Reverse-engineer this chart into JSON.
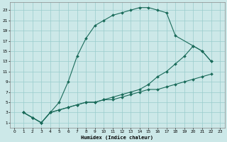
{
  "xlabel": "Humidex (Indice chaleur)",
  "bg_color": "#cce8e8",
  "grid_color": "#99cccc",
  "line_color": "#1a6b5a",
  "xlim": [
    -0.5,
    23.5
  ],
  "ylim": [
    0,
    24.5
  ],
  "xticks": [
    0,
    1,
    2,
    3,
    4,
    5,
    6,
    7,
    8,
    9,
    10,
    11,
    12,
    13,
    14,
    15,
    16,
    17,
    18,
    19,
    20,
    21,
    22,
    23
  ],
  "yticks": [
    1,
    3,
    5,
    7,
    9,
    11,
    13,
    15,
    17,
    19,
    21,
    23
  ],
  "curve1_x": [
    1,
    2,
    3,
    4,
    5,
    6,
    7,
    8,
    9,
    10,
    11,
    12,
    13,
    14,
    15,
    16,
    17,
    18,
    20,
    21,
    22
  ],
  "curve1_y": [
    3,
    2,
    1,
    3,
    5,
    9,
    14,
    17.5,
    20,
    21,
    22,
    22.5,
    23,
    23.5,
    23.5,
    23,
    22.5,
    18,
    16,
    15,
    13
  ],
  "curve2_x": [
    1,
    2,
    3,
    4,
    5,
    6,
    7,
    8,
    9,
    10,
    11,
    12,
    13,
    14,
    15,
    16,
    17,
    18,
    19,
    20,
    21,
    22
  ],
  "curve2_y": [
    3,
    2,
    1,
    3,
    3.5,
    4,
    4.5,
    5,
    5,
    5.5,
    6,
    6.5,
    7,
    7.5,
    8.5,
    10,
    11,
    12.5,
    14,
    16,
    15,
    13
  ],
  "curve3_x": [
    1,
    2,
    3,
    4,
    5,
    6,
    7,
    8,
    9,
    10,
    11,
    12,
    13,
    14,
    15,
    16,
    17,
    18,
    19,
    20,
    21,
    22
  ],
  "curve3_y": [
    3,
    2,
    1,
    3,
    3.5,
    4,
    4.5,
    5,
    5,
    5.5,
    5.5,
    6,
    6.5,
    7,
    7.5,
    7.5,
    8,
    8.5,
    9,
    9.5,
    10,
    10.5
  ]
}
